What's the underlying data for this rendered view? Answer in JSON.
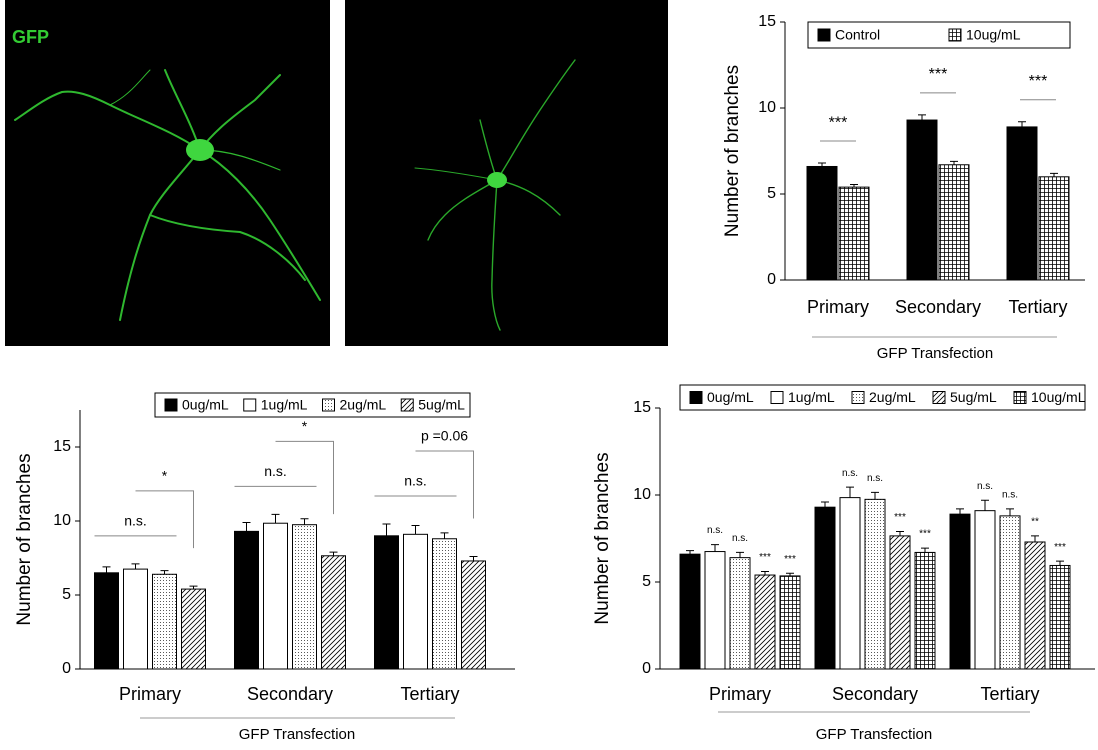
{
  "image_label": "GFP",
  "chart_data": [
    {
      "type": "bar",
      "y_label": "Number of branches",
      "x_label": "GFP Transfection",
      "categories": [
        "Primary",
        "Secondary",
        "Tertiary"
      ],
      "ylim": [
        0,
        15
      ],
      "yticks": [
        0,
        5,
        10,
        15
      ],
      "series": [
        {
          "name": "Control",
          "color": "#000000",
          "values": [
            6.6,
            9.3,
            8.9
          ],
          "errors": [
            0.2,
            0.3,
            0.3
          ]
        },
        {
          "name": "10ug/mL",
          "color": "#ffffff",
          "pattern": "grid",
          "values": [
            5.4,
            6.7,
            6.0
          ],
          "errors": [
            0.15,
            0.2,
            0.2
          ]
        }
      ],
      "annotations": [
        "***",
        "***",
        "***"
      ]
    },
    {
      "type": "bar",
      "y_label": "Number of branches",
      "x_label": "GFP Transfection",
      "categories": [
        "Primary",
        "Secondary",
        "Tertiary"
      ],
      "ylim": [
        0,
        17.5
      ],
      "yticks": [
        0,
        5,
        10,
        15
      ],
      "series": [
        {
          "name": "0ug/mL",
          "color": "#000000",
          "values": [
            6.5,
            9.3,
            9.0
          ],
          "errors": [
            0.4,
            0.6,
            0.8
          ]
        },
        {
          "name": "1ug/mL",
          "color": "#ffffff",
          "values": [
            6.75,
            9.85,
            9.1
          ],
          "errors": [
            0.35,
            0.6,
            0.6
          ]
        },
        {
          "name": "2ug/mL",
          "color": "#ffffff",
          "pattern": "dots",
          "values": [
            6.4,
            9.75,
            8.8
          ],
          "errors": [
            0.25,
            0.4,
            0.4
          ]
        },
        {
          "name": "5ug/mL",
          "color": "#ffffff",
          "pattern": "hatch",
          "values": [
            5.4,
            7.65,
            7.3
          ],
          "errors": [
            0.2,
            0.25,
            0.3
          ]
        }
      ],
      "annotations": [
        [
          "n.s.",
          "*"
        ],
        [
          "n.s.",
          "*"
        ],
        [
          "n.s.",
          "p =0.06"
        ]
      ]
    },
    {
      "type": "bar",
      "y_label": "Number of branches",
      "x_label": "GFP Transfection",
      "categories": [
        "Primary",
        "Secondary",
        "Tertiary"
      ],
      "ylim": [
        0,
        15
      ],
      "yticks": [
        0,
        5,
        10,
        15
      ],
      "series": [
        {
          "name": "0ug/mL",
          "color": "#000000",
          "values": [
            6.6,
            9.3,
            8.9
          ],
          "errors": [
            0.2,
            0.3,
            0.3
          ]
        },
        {
          "name": "1ug/mL",
          "color": "#ffffff",
          "values": [
            6.75,
            9.85,
            9.1
          ],
          "errors": [
            0.4,
            0.6,
            0.6
          ],
          "significance": [
            "n.s.",
            "n.s.",
            "n.s."
          ]
        },
        {
          "name": "2ug/mL",
          "color": "#ffffff",
          "pattern": "dots",
          "values": [
            6.4,
            9.75,
            8.8
          ],
          "errors": [
            0.3,
            0.4,
            0.4
          ],
          "significance": [
            "n.s.",
            "n.s.",
            "n.s."
          ]
        },
        {
          "name": "5ug/mL",
          "color": "#ffffff",
          "pattern": "hatch",
          "values": [
            5.4,
            7.65,
            7.3
          ],
          "errors": [
            0.2,
            0.25,
            0.35
          ],
          "significance": [
            "***",
            "***",
            "**"
          ]
        },
        {
          "name": "10ug/mL",
          "color": "#ffffff",
          "pattern": "grid",
          "values": [
            5.35,
            6.7,
            5.95
          ],
          "errors": [
            0.15,
            0.25,
            0.25
          ],
          "significance": [
            "***",
            "***",
            "***"
          ]
        }
      ]
    }
  ]
}
